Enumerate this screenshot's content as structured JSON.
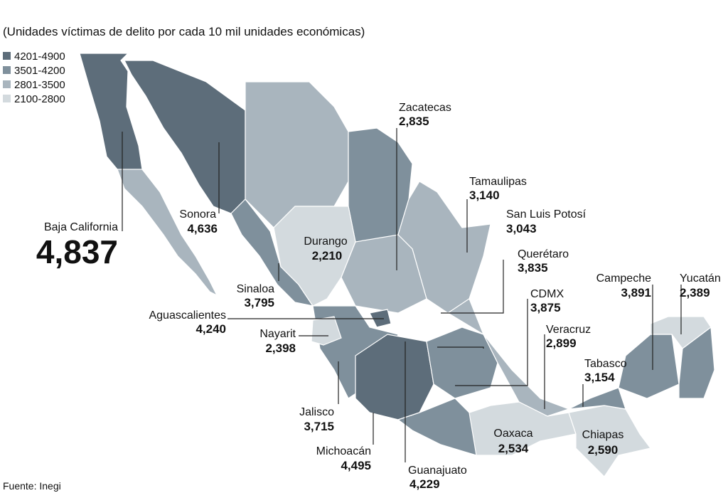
{
  "title": "(Unidades víctimas de delito por cada 10 mil unidades económicas)",
  "legend": [
    {
      "label": "4201-4900",
      "color": "#5d6d7a"
    },
    {
      "label": "3501-4200",
      "color": "#7f909c"
    },
    {
      "label": "2801-3500",
      "color": "#a9b5be"
    },
    {
      "label": "2100-2800",
      "color": "#d3dade"
    }
  ],
  "states": [
    {
      "name": "Baja California",
      "value": "4,837"
    },
    {
      "name": "Sonora",
      "value": "4,636"
    },
    {
      "name": "Sinaloa",
      "value": "3,795"
    },
    {
      "name": "Aguascalientes",
      "value": "4,240"
    },
    {
      "name": "Nayarit",
      "value": "2,398"
    },
    {
      "name": "Jalisco",
      "value": "3,715"
    },
    {
      "name": "Michoacán",
      "value": "4,495"
    },
    {
      "name": "Guanajuato",
      "value": "4,229"
    },
    {
      "name": "Oaxaca",
      "value": "2,534"
    },
    {
      "name": "Chiapas",
      "value": "2,590"
    },
    {
      "name": "Tabasco",
      "value": "3,154"
    },
    {
      "name": "Veracruz",
      "value": "2,899"
    },
    {
      "name": "CDMX",
      "value": "3,875"
    },
    {
      "name": "Querétaro",
      "value": "3,835"
    },
    {
      "name": "San Luis Potosí",
      "value": "3,043"
    },
    {
      "name": "Tamaulipas",
      "value": "3,140"
    },
    {
      "name": "Zacatecas",
      "value": "2,835"
    },
    {
      "name": "Durango",
      "value": "2,210"
    },
    {
      "name": "Campeche",
      "value": "3,891"
    },
    {
      "name": "Yucatán",
      "value": "2,389"
    }
  ],
  "source": "Fuente: Inegi"
}
